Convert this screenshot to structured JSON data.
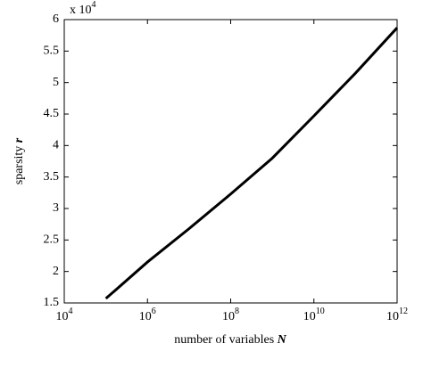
{
  "chart_data": {
    "type": "line",
    "xlabel": "number of variables",
    "xlabel_var": "N",
    "ylabel": "sparsity",
    "ylabel_var": "r",
    "y_multiplier": "x 10",
    "y_multiplier_exponent": "4",
    "xscale": "log",
    "xlim": [
      10000,
      1000000000000
    ],
    "xticks": [
      {
        "value": 10000,
        "label": "10",
        "exponent": "4"
      },
      {
        "value": 1000000,
        "label": "10",
        "exponent": "6"
      },
      {
        "value": 100000000,
        "label": "10",
        "exponent": "8"
      },
      {
        "value": 10000000000,
        "label": "10",
        "exponent": "10"
      },
      {
        "value": 1000000000000,
        "label": "10",
        "exponent": "12"
      }
    ],
    "ylim": [
      15000,
      60000
    ],
    "yticks": [
      {
        "value": 15000,
        "label": "1.5"
      },
      {
        "value": 20000,
        "label": "2"
      },
      {
        "value": 25000,
        "label": "2.5"
      },
      {
        "value": 30000,
        "label": "3"
      },
      {
        "value": 35000,
        "label": "3.5"
      },
      {
        "value": 40000,
        "label": "4"
      },
      {
        "value": 45000,
        "label": "4.5"
      },
      {
        "value": 50000,
        "label": "5"
      },
      {
        "value": 55000,
        "label": "5.5"
      },
      {
        "value": 60000,
        "label": "6"
      }
    ],
    "series": [
      {
        "color": "#000000",
        "x": [
          100000,
          1000000,
          10000000,
          100000000,
          1000000000,
          10000000000,
          100000000000,
          1000000000000
        ],
        "values": [
          15700,
          21500,
          26800,
          32300,
          38000,
          44700,
          51500,
          58700
        ]
      }
    ]
  }
}
